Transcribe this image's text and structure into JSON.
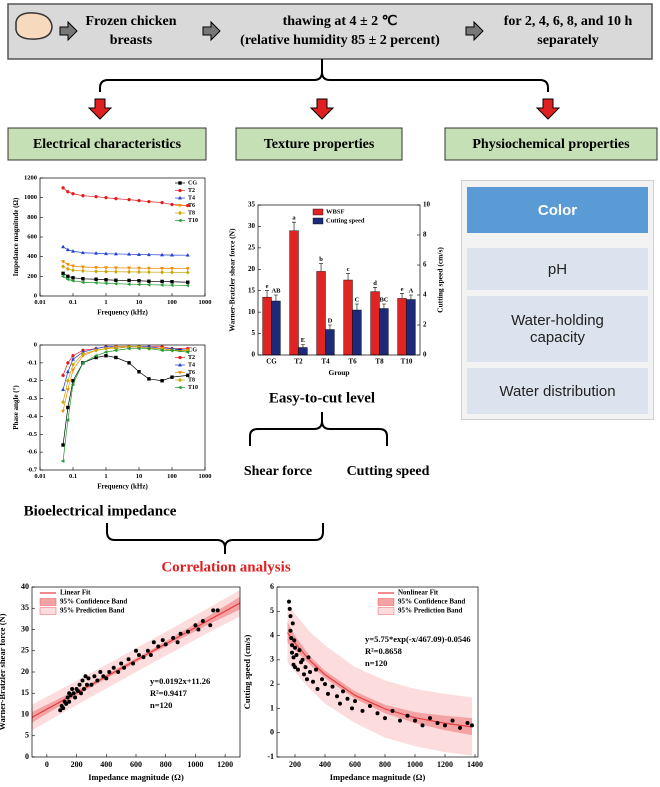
{
  "diagram": {
    "flow": [
      {
        "lines": [
          "Frozen chicken",
          "breasts"
        ]
      },
      {
        "lines": [
          "thawing at 4 ± 2 ℃",
          "(relative humidity 85 ± 2 percent)"
        ]
      },
      {
        "lines": [
          "for 2, 4, 6, 8, and 10 h",
          "separately"
        ]
      }
    ],
    "sections": [
      "Electrical characteristics",
      "Texture properties",
      "Physiochemical properties"
    ],
    "physiochemical_items": [
      "Color",
      "pH",
      "Water-holding capacity",
      "Water distribution"
    ],
    "bioelectrical_label": "Bioelectrical impedance",
    "texture_label": "Easy-to-cut level",
    "texture_items": [
      "Shear force",
      "Cutting speed"
    ],
    "correlation_label": "Correlation analysis"
  },
  "chart_data": [
    {
      "type": "line",
      "ylabel": "Impedance magnitude (Ω)",
      "xlabel": "Frequency (kHz)",
      "x_scale": "log",
      "x": [
        0.05,
        0.07,
        0.1,
        0.2,
        0.5,
        1,
        2,
        5,
        10,
        20,
        50,
        100,
        300
      ],
      "xlim": [
        0.01,
        1000
      ],
      "xticks": [
        0.01,
        0.1,
        1,
        10,
        100,
        1000
      ],
      "ylim": [
        0,
        1200
      ],
      "yticks": [
        0,
        200,
        400,
        600,
        800,
        1000,
        1200
      ],
      "legend": "upper right",
      "series": [
        {
          "name": "CG",
          "color": "#000000",
          "marker": "square",
          "values": [
            230,
            200,
            185,
            175,
            170,
            165,
            160,
            158,
            155,
            150,
            148,
            145,
            140
          ]
        },
        {
          "name": "T2",
          "color": "#e31a1c",
          "marker": "circle",
          "values": [
            1100,
            1060,
            1040,
            1020,
            1010,
            1000,
            990,
            980,
            970,
            960,
            950,
            930,
            920
          ]
        },
        {
          "name": "T4",
          "color": "#1f3fd6",
          "marker": "triangle-up",
          "values": [
            500,
            470,
            455,
            440,
            435,
            430,
            428,
            425,
            422,
            420,
            418,
            416,
            415
          ]
        },
        {
          "name": "T6",
          "color": "#f08a00",
          "marker": "triangle-down",
          "values": [
            350,
            320,
            305,
            295,
            290,
            288,
            286,
            285,
            283,
            282,
            281,
            280,
            279
          ]
        },
        {
          "name": "T8",
          "color": "#c9a400",
          "marker": "diamond",
          "values": [
            300,
            275,
            262,
            255,
            250,
            248,
            246,
            245,
            244,
            243,
            242,
            241,
            240
          ]
        },
        {
          "name": "T10",
          "color": "#1e9a2e",
          "marker": "triangle-left",
          "values": [
            200,
            170,
            155,
            140,
            135,
            130,
            125,
            120,
            118,
            115,
            112,
            110,
            108
          ]
        }
      ]
    },
    {
      "type": "line",
      "ylabel": "Phase angle (°)",
      "xlabel": "Frequency (kHz)",
      "x_scale": "log",
      "x": [
        0.05,
        0.07,
        0.1,
        0.2,
        0.5,
        1,
        2,
        5,
        10,
        20,
        50,
        100,
        300
      ],
      "xlim": [
        0.01,
        1000
      ],
      "xticks": [
        0.01,
        0.1,
        1,
        10,
        100,
        1000
      ],
      "ylim": [
        -0.7,
        0
      ],
      "yticks": [
        -0.7,
        -0.6,
        -0.5,
        -0.4,
        -0.3,
        -0.2,
        -0.1,
        0
      ],
      "legend": "upper right",
      "series": [
        {
          "name": "CG",
          "color": "#000000",
          "marker": "square",
          "values": [
            -0.56,
            -0.35,
            -0.2,
            -0.1,
            -0.07,
            -0.06,
            -0.07,
            -0.1,
            -0.15,
            -0.19,
            -0.2,
            -0.18,
            -0.17
          ]
        },
        {
          "name": "T2",
          "color": "#e31a1c",
          "marker": "circle",
          "values": [
            -0.17,
            -0.1,
            -0.06,
            -0.03,
            -0.02,
            -0.01,
            -0.01,
            -0.01,
            -0.01,
            -0.01,
            -0.01,
            -0.02,
            -0.02
          ]
        },
        {
          "name": "T4",
          "color": "#1f3fd6",
          "marker": "triangle-up",
          "values": [
            -0.25,
            -0.15,
            -0.08,
            -0.04,
            -0.02,
            -0.01,
            -0.01,
            -0.01,
            -0.01,
            -0.01,
            -0.02,
            -0.02,
            -0.03
          ]
        },
        {
          "name": "T6",
          "color": "#f08a00",
          "marker": "triangle-down",
          "values": [
            -0.37,
            -0.25,
            -0.14,
            -0.06,
            -0.03,
            -0.02,
            -0.01,
            -0.01,
            -0.01,
            -0.02,
            -0.02,
            -0.03,
            -0.03
          ]
        },
        {
          "name": "T8",
          "color": "#c9a400",
          "marker": "diamond",
          "values": [
            -0.32,
            -0.2,
            -0.11,
            -0.05,
            -0.03,
            -0.02,
            -0.02,
            -0.01,
            -0.01,
            -0.02,
            -0.02,
            -0.03,
            -0.03
          ]
        },
        {
          "name": "T10",
          "color": "#1e9a2e",
          "marker": "triangle-left",
          "values": [
            -0.65,
            -0.42,
            -0.22,
            -0.1,
            -0.06,
            -0.04,
            -0.03,
            -0.02,
            -0.02,
            -0.02,
            -0.03,
            -0.03,
            -0.04
          ]
        }
      ]
    },
    {
      "type": "bar",
      "ylabel": "Warner-Bratzler shear force (N)",
      "y2label": "Cutting speed (cm/s)",
      "xlabel": "Group",
      "categories": [
        "CG",
        "T2",
        "T4",
        "T6",
        "T8",
        "T10"
      ],
      "ylim": [
        0,
        35
      ],
      "yticks": [
        0,
        5,
        10,
        15,
        20,
        25,
        30,
        35
      ],
      "y2lim": [
        0,
        10
      ],
      "y2ticks": [
        0,
        2,
        4,
        6,
        8,
        10
      ],
      "legend": "upper center",
      "series": [
        {
          "name": "WBSF",
          "color": "#e02424",
          "values": [
            13.5,
            29,
            19.5,
            17.5,
            14.8,
            13.2
          ],
          "errors": [
            1.5,
            2,
            1.8,
            1.5,
            1,
            1.2
          ],
          "letters": [
            "e",
            "a",
            "b",
            "c",
            "d",
            "e"
          ]
        },
        {
          "name": "Cutting speed",
          "color": "#1c2a7a",
          "axis": "y2",
          "values": [
            3.6,
            0.5,
            1.7,
            3.0,
            3.1,
            3.7
          ],
          "errors": [
            0.4,
            0.2,
            0.3,
            0.4,
            0.3,
            0.3
          ],
          "letters": [
            "AB",
            "E",
            "D",
            "C",
            "BC",
            "A"
          ]
        }
      ]
    },
    {
      "type": "scatter",
      "ylabel": "Warner-Bratzler shear force (N)",
      "xlabel": "Impedance magnitude (Ω)",
      "xlim": [
        -100,
        1300
      ],
      "xticks": [
        0,
        200,
        400,
        600,
        800,
        1000,
        1200
      ],
      "ylim": [
        0,
        40
      ],
      "yticks": [
        0,
        5,
        10,
        15,
        20,
        25,
        30,
        35,
        40
      ],
      "legend": "upper left",
      "points": {
        "color": "#000000",
        "x": [
          90,
          100,
          110,
          120,
          130,
          140,
          150,
          150,
          160,
          170,
          180,
          190,
          200,
          210,
          220,
          230,
          240,
          250,
          260,
          270,
          280,
          300,
          320,
          340,
          360,
          380,
          400,
          420,
          450,
          480,
          500,
          520,
          550,
          580,
          600,
          620,
          650,
          680,
          700,
          720,
          750,
          780,
          800,
          850,
          880,
          900,
          950,
          1000,
          1020,
          1050,
          1100,
          1120,
          1150
        ],
        "values": [
          11,
          12,
          11.5,
          13,
          12.5,
          14,
          15,
          13,
          14.5,
          16,
          15,
          14,
          16,
          15.5,
          17,
          15,
          18,
          16,
          19,
          17,
          18.5,
          17,
          19,
          18,
          20,
          19,
          18.5,
          20,
          21,
          20,
          22,
          21,
          23,
          22,
          25,
          24,
          23.5,
          25,
          24,
          27,
          26,
          27.5,
          26.5,
          28,
          27,
          29,
          29.5,
          31,
          30,
          32,
          31,
          34.5,
          34.5
        ]
      },
      "fit": {
        "name": "Linear Fit",
        "color": "#e83c3f",
        "x": [
          -100,
          1300
        ],
        "values": [
          9.34,
          36.22
        ]
      },
      "confidence_band": {
        "name": "95% Confidence Band",
        "color": "#f4a3a5",
        "x": [
          -100,
          300,
          700,
          1100,
          1300
        ],
        "lower": [
          8.1,
          16.5,
          24.2,
          31.4,
          34.7
        ],
        "upper": [
          10.6,
          17.5,
          25.2,
          33.4,
          37.7
        ]
      },
      "prediction_band": {
        "name": "95% Prediction Band",
        "color": "#fcdcdc",
        "x": [
          -100,
          300,
          700,
          1100,
          1300
        ],
        "lower": [
          6.3,
          14.2,
          21.9,
          29.5,
          33.1
        ],
        "upper": [
          12.3,
          19.8,
          27.5,
          35.3,
          39.3
        ]
      },
      "annotations": [
        "y=0.0192x+11.26",
        "R²=0.9417",
        "n=120"
      ]
    },
    {
      "type": "scatter",
      "ylabel": "Cutting speed (cm/s)",
      "xlabel": "Impedance magnitude (Ω)",
      "xlim": [
        80,
        1420
      ],
      "xticks": [
        200,
        400,
        600,
        800,
        1000,
        1200,
        1400
      ],
      "ylim": [
        -1,
        6
      ],
      "yticks": [
        -1,
        0,
        1,
        2,
        3,
        4,
        5,
        6
      ],
      "legend": "upper right",
      "points": {
        "color": "#000000",
        "x": [
          160,
          165,
          170,
          170,
          175,
          180,
          180,
          185,
          190,
          190,
          195,
          200,
          200,
          210,
          220,
          230,
          240,
          250,
          260,
          270,
          280,
          290,
          300,
          320,
          340,
          350,
          380,
          400,
          420,
          450,
          480,
          500,
          520,
          550,
          580,
          600,
          650,
          700,
          750,
          800,
          850,
          900,
          950,
          1000,
          1050,
          1100,
          1150,
          1200,
          1250,
          1300,
          1350,
          1380
        ],
        "values": [
          5.4,
          5.1,
          4.8,
          4.2,
          3.9,
          3.6,
          3.3,
          4.5,
          3.1,
          2.8,
          3.8,
          3.5,
          2.7,
          3.2,
          2.6,
          3.4,
          2.9,
          3.0,
          2.4,
          2.7,
          2.2,
          3.1,
          2.5,
          2.1,
          2.6,
          1.8,
          2.2,
          2.0,
          1.6,
          1.9,
          1.5,
          1.2,
          1.7,
          1.4,
          1.0,
          1.3,
          0.9,
          1.1,
          0.8,
          0.6,
          0.9,
          0.5,
          0.7,
          0.5,
          0.3,
          0.6,
          0.4,
          0.3,
          0.5,
          0.2,
          0.4,
          0.3
        ]
      },
      "fit": {
        "name": "Nonlinear Fit",
        "color": "#e83c3f",
        "x": [
          150,
          200,
          300,
          400,
          600,
          800,
          1000,
          1200,
          1380
        ],
        "values": [
          4.12,
          3.69,
          2.97,
          2.39,
          1.54,
          0.98,
          0.62,
          0.39,
          0.24
        ]
      },
      "confidence_band": {
        "name": "95% Confidence Band",
        "color": "#f4a3a5",
        "x": [
          150,
          200,
          300,
          400,
          600,
          800,
          1000,
          1200,
          1380
        ],
        "lower": [
          3.7,
          3.4,
          2.8,
          2.25,
          1.4,
          0.8,
          0.4,
          0.1,
          -0.1
        ],
        "upper": [
          4.55,
          4.0,
          3.15,
          2.55,
          1.7,
          1.15,
          0.85,
          0.7,
          0.6
        ]
      },
      "prediction_band": {
        "name": "95% Prediction Band",
        "color": "#fcdcdc",
        "x": [
          150,
          200,
          300,
          400,
          600,
          800,
          1000,
          1200,
          1380
        ],
        "lower": [
          2.9,
          2.5,
          1.8,
          1.2,
          0.4,
          -0.2,
          -0.55,
          -0.8,
          -0.95
        ],
        "upper": [
          5.3,
          4.9,
          4.15,
          3.6,
          2.7,
          2.15,
          1.8,
          1.6,
          1.45
        ]
      },
      "annotations": [
        "y=5.75*exp(-x/467.09)-0.0546",
        "R²=0.8658",
        "n=120"
      ]
    }
  ]
}
